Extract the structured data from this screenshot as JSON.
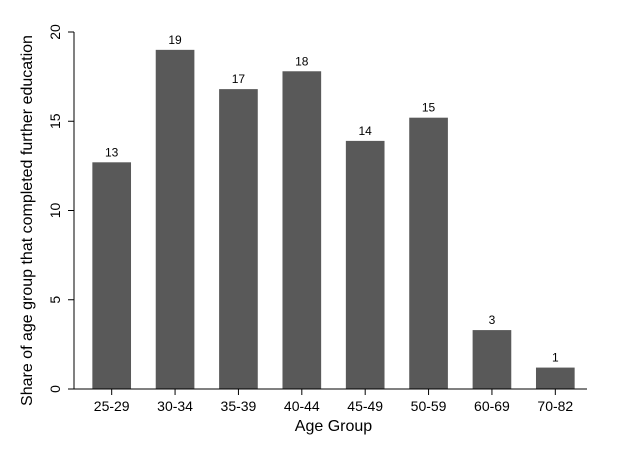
{
  "chart_data": {
    "type": "bar",
    "title": "",
    "xlabel": "Age Group",
    "ylabel": "Share of age group that completed further education",
    "categories": [
      "25-29",
      "30-34",
      "35-39",
      "40-44",
      "45-49",
      "50-59",
      "60-69",
      "70-82"
    ],
    "values": [
      12.7,
      19.0,
      16.8,
      17.8,
      13.9,
      15.2,
      3.3,
      1.2
    ],
    "data_labels": [
      "13",
      "19",
      "17",
      "18",
      "14",
      "15",
      "3",
      "1"
    ],
    "ylim": [
      0,
      20
    ],
    "yticks": [
      0,
      5,
      10,
      15,
      20
    ],
    "grid": false,
    "legend": "none",
    "bar_color": "#595959"
  }
}
